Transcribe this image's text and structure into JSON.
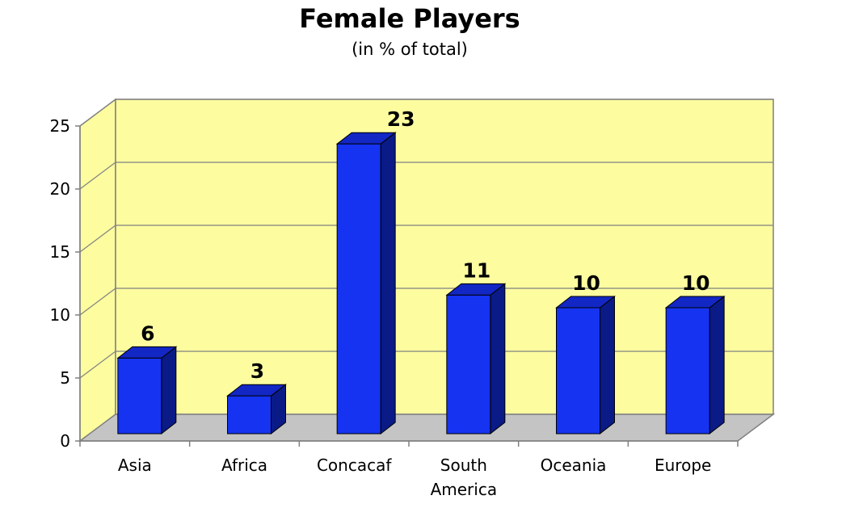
{
  "chart_data": {
    "type": "bar",
    "title": "Female Players",
    "subtitle": "(in % of total)",
    "categories": [
      "Asia",
      "Africa",
      "Concacaf",
      "South America",
      "Oceania",
      "Europe"
    ],
    "category_lines": [
      [
        "Asia"
      ],
      [
        "Africa"
      ],
      [
        "Concacaf"
      ],
      [
        "South",
        "America"
      ],
      [
        "Oceania"
      ],
      [
        "Europe"
      ]
    ],
    "values": [
      6,
      3,
      23,
      11,
      10,
      10
    ],
    "data_labels": [
      "6",
      "3",
      "23",
      "11",
      "10",
      "10"
    ],
    "yticks": [
      0,
      5,
      10,
      15,
      20,
      25
    ],
    "ylim": [
      0,
      25
    ],
    "grid": true,
    "style": "3d-column",
    "colors": {
      "bar_front": "#1533f0",
      "bar_side": "#0a1a86",
      "bar_top": "#1227c4",
      "back_wall": "#fdfda0",
      "side_wall": "#fdfda0",
      "floor": "#c4c4c4",
      "gridline": "#808080",
      "axis": "#808080"
    }
  }
}
